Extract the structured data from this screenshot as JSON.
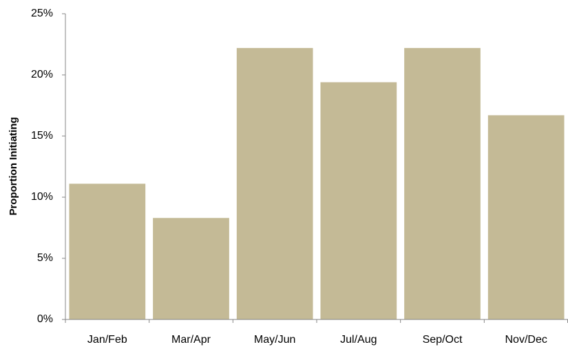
{
  "chart_data": {
    "type": "bar",
    "y_label": "Proportion Initiating",
    "categories": [
      "Jan/Feb",
      "Mar/Apr",
      "May/Jun",
      "Jul/Aug",
      "Sep/Oct",
      "Nov/Dec"
    ],
    "values": [
      11.1,
      8.3,
      22.2,
      19.4,
      22.2,
      16.7
    ],
    "color": "#c4ba96",
    "ylim": [
      0,
      25
    ],
    "yticks": [
      {
        "value": 0,
        "label": "0%"
      },
      {
        "value": 5,
        "label": "5%"
      },
      {
        "value": 10,
        "label": "10%"
      },
      {
        "value": 15,
        "label": "15%"
      },
      {
        "value": 20,
        "label": "20%"
      },
      {
        "value": 25,
        "label": "25%"
      }
    ],
    "grid": false
  }
}
